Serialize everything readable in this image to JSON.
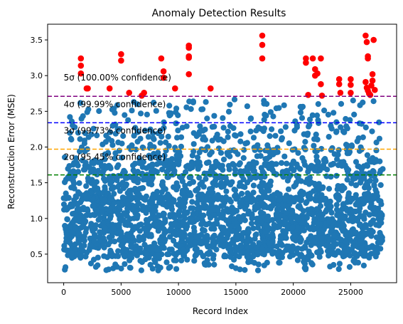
{
  "chart_data": {
    "type": "scatter",
    "title": "Anomaly Detection Results",
    "xlabel": "Record Index",
    "ylabel": "Reconstruction Error (MSE)",
    "xlim": [
      -1400,
      29000
    ],
    "ylim": [
      0.1,
      3.72
    ],
    "xticks": [
      0,
      5000,
      10000,
      15000,
      20000,
      25000
    ],
    "yticks": [
      0.5,
      1.0,
      1.5,
      2.0,
      2.5,
      3.0,
      3.5
    ],
    "xtick_labels": [
      "0",
      "5000",
      "10000",
      "15000",
      "20000",
      "25000"
    ],
    "ytick_labels": [
      "0.5",
      "1.0",
      "1.5",
      "2.0",
      "2.5",
      "3.0",
      "3.5"
    ],
    "x_count": 27800,
    "grid": false,
    "colors": {
      "normal": "#1f77b4",
      "anomaly": "#ff0000"
    },
    "thresholds": [
      {
        "label": "2σ (95.45% confidence)",
        "value": 1.61,
        "color": "#008000",
        "text_y": 1.82
      },
      {
        "label": "3σ (99.73% confidence)",
        "value": 1.97,
        "color": "#ffa500",
        "text_y": 2.19
      },
      {
        "label": "4σ (99.99% confidence)",
        "value": 2.34,
        "color": "#0000ff",
        "text_y": 2.56
      },
      {
        "label": "5σ (100.00% confidence)",
        "value": 2.71,
        "color": "#800080",
        "text_y": 2.93
      }
    ],
    "anomalies": [
      [
        1500,
        3.24
      ],
      [
        1500,
        3.14
      ],
      [
        1500,
        3.03
      ],
      [
        2000,
        2.82
      ],
      [
        2100,
        2.82
      ],
      [
        4000,
        2.82
      ],
      [
        5000,
        3.3
      ],
      [
        5000,
        3.21
      ],
      [
        5700,
        2.76
      ],
      [
        6800,
        2.72
      ],
      [
        7000,
        2.76
      ],
      [
        8500,
        3.24
      ],
      [
        8700,
        3.06
      ],
      [
        8700,
        2.97
      ],
      [
        9700,
        2.82
      ],
      [
        10900,
        3.42
      ],
      [
        10900,
        3.39
      ],
      [
        10900,
        3.27
      ],
      [
        10900,
        3.25
      ],
      [
        10900,
        3.02
      ],
      [
        12800,
        2.82
      ],
      [
        17300,
        3.56
      ],
      [
        17300,
        3.43
      ],
      [
        17300,
        3.24
      ],
      [
        21100,
        3.24
      ],
      [
        21100,
        3.18
      ],
      [
        21300,
        2.73
      ],
      [
        21700,
        3.24
      ],
      [
        21900,
        3.09
      ],
      [
        21900,
        3.0
      ],
      [
        22100,
        3.03
      ],
      [
        22400,
        3.24
      ],
      [
        22400,
        2.88
      ],
      [
        22500,
        2.72
      ],
      [
        24000,
        2.95
      ],
      [
        24000,
        2.88
      ],
      [
        24100,
        2.76
      ],
      [
        25000,
        2.95
      ],
      [
        25000,
        2.87
      ],
      [
        25000,
        2.76
      ],
      [
        26300,
        3.56
      ],
      [
        26400,
        3.47
      ],
      [
        26500,
        3.24
      ],
      [
        26500,
        3.27
      ],
      [
        26300,
        2.91
      ],
      [
        26400,
        2.83
      ],
      [
        26500,
        2.79
      ],
      [
        26700,
        2.73
      ],
      [
        26800,
        2.86
      ],
      [
        26900,
        2.93
      ],
      [
        26900,
        3.02
      ],
      [
        27000,
        3.5
      ],
      [
        27100,
        2.8
      ],
      [
        26600,
        2.75
      ]
    ]
  }
}
